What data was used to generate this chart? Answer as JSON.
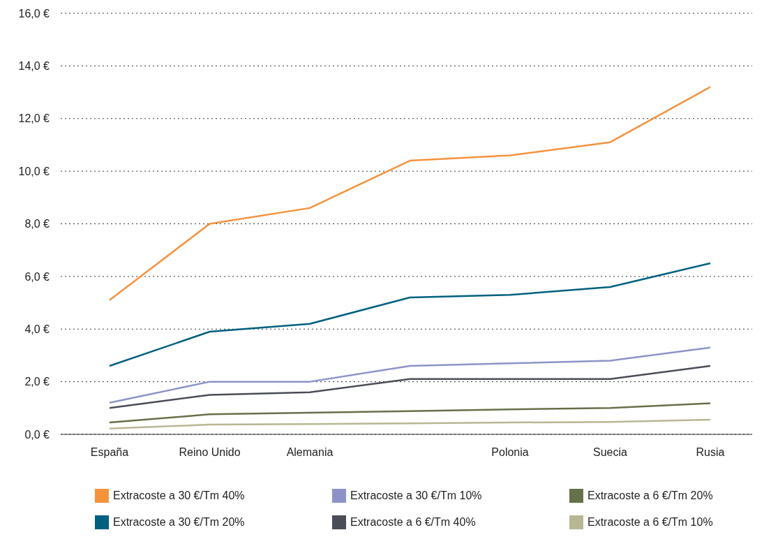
{
  "chart_data": {
    "type": "line",
    "categories": [
      "España",
      "Reino Unido",
      "Alemania",
      null,
      "Polonia",
      "Suecia",
      "Rusia"
    ],
    "series": [
      {
        "name": "Extracoste a 30 €/Tm 40%",
        "color": "#f5923e",
        "values": [
          5.1,
          8.0,
          8.6,
          10.4,
          10.6,
          11.1,
          13.2
        ]
      },
      {
        "name": "Extracoste a 30 €/Tm 10%",
        "color": "#8d93c8",
        "values": [
          1.2,
          2.0,
          2.0,
          2.6,
          2.7,
          2.8,
          3.3
        ]
      },
      {
        "name": "Extracoste a 6 €/Tm 20%",
        "color": "#66704a",
        "values": [
          0.45,
          0.76,
          0.82,
          0.88,
          0.95,
          1.0,
          1.18
        ]
      },
      {
        "name": "Extracoste a 30 €/Tm 20%",
        "color": "#00607f",
        "values": [
          2.6,
          3.9,
          4.2,
          5.2,
          5.3,
          5.6,
          6.5
        ]
      },
      {
        "name": "Extracoste a 6 €/Tm 40%",
        "color": "#4a4d57",
        "values": [
          1.0,
          1.5,
          1.6,
          2.1,
          2.1,
          2.1,
          2.6
        ]
      },
      {
        "name": "Extracoste a 6 €/Tm 10%",
        "color": "#b8b794",
        "values": [
          0.22,
          0.37,
          0.39,
          0.42,
          0.45,
          0.47,
          0.56
        ]
      }
    ],
    "ylim": [
      0,
      16
    ],
    "yticks": [
      {
        "value": 0,
        "label": "0,0 €"
      },
      {
        "value": 2,
        "label": "2,0 €"
      },
      {
        "value": 4,
        "label": "4,0 €"
      },
      {
        "value": 6,
        "label": "6,0 €"
      },
      {
        "value": 8,
        "label": "8,0 €"
      },
      {
        "value": 10,
        "label": "10,0 €"
      },
      {
        "value": 12,
        "label": "12,0 €"
      },
      {
        "value": 14,
        "label": "14,0 €"
      },
      {
        "value": 16,
        "label": "16,0 €"
      }
    ],
    "grid": "y",
    "legend": "bottom",
    "marker": "none",
    "line_style": "solid"
  }
}
